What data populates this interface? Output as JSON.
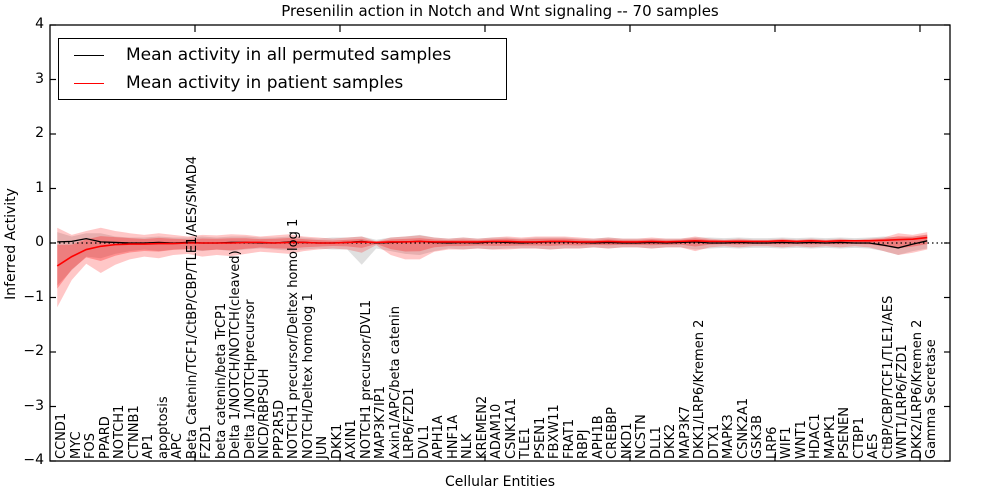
{
  "chart_data": {
    "type": "line",
    "title": "Presenilin action in Notch and Wnt signaling -- 70 samples",
    "xlabel": "Cellular Entities",
    "ylabel": "Inferred Activity",
    "ylim": [
      -4,
      4
    ],
    "yticks": [
      4,
      3,
      2,
      1,
      0,
      -1,
      -2,
      -3,
      -4
    ],
    "ytick_labels": [
      "4",
      "3",
      "2",
      "1",
      "0",
      "−1",
      "−2",
      "−3",
      "−4"
    ],
    "xlim": [
      0,
      62.07
    ],
    "xticks": [
      10,
      20,
      30,
      40,
      50,
      60
    ],
    "grid": false,
    "zero_line": true,
    "legend_position": "upper left",
    "entities": [
      "CCND1",
      "MYC",
      "FOS",
      "PPARD",
      "NOTCH1",
      "CTNNB1",
      "AP1",
      "apoptosis",
      "APC",
      "Beta Catenin/TCF1/CtBP/CBP/TLE1/AES/SMAD4",
      "FZD1",
      "beta catenin/beta TrCP1",
      "Delta 1/NOTCH/NOTCH(cleaved)",
      "Delta 1/NOTCHprecursor",
      "NICD/RBPSUH",
      "PPP2R5D",
      "NOTCH1 precursor/Deltex homolog 1",
      "NOTCH/Deltex homolog 1",
      "JUN",
      "DKK1",
      "AXIN1",
      "NOTCH1 precursor/DVL1",
      "MAP3K7IP1",
      "Axin1/APC/beta catenin",
      "LRP6/FZD1",
      "DVL1",
      "APH1A",
      "HNF1A",
      "NLK",
      "KREMEN2",
      "ADAM10",
      "CSNK1A1",
      "TLE1",
      "PSEN1",
      "FBXW11",
      "FRAT1",
      "RBPJ",
      "APH1B",
      "CREBBP",
      "NKD1",
      "NCSTN",
      "DLL1",
      "DKK2",
      "MAP3K7",
      "DKK1/LRP6/Kremen 2",
      "DTX1",
      "MAPK3",
      "CSNK2A1",
      "GSK3B",
      "LRP6",
      "WIF1",
      "WNT1",
      "HDAC1",
      "MAPK1",
      "PSENEN",
      "CTBP1",
      "AES",
      "CtBP/CBP/TCF1/TLE1/AES",
      "WNT1/LRP6/FZD1",
      "DKK2/LRP6/Kremen 2",
      "Gamma Secretase"
    ],
    "series": [
      {
        "name": "Mean activity in all permuted samples",
        "color": "#000000",
        "band_color": "#bbbbbb",
        "band_opacity": 0.45,
        "mean": [
          0.02,
          0.03,
          0.08,
          0.02,
          0.01,
          0.0,
          0.0,
          0.01,
          0.0,
          0.01,
          0.0,
          0.0,
          0.01,
          0.01,
          0.0,
          0.0,
          0.02,
          0.01,
          0.0,
          0.0,
          0.01,
          0.03,
          0.0,
          0.01,
          0.02,
          0.03,
          0.01,
          0.0,
          0.01,
          0.0,
          0.02,
          0.01,
          0.0,
          0.01,
          0.02,
          0.02,
          0.01,
          0.0,
          0.01,
          0.0,
          0.0,
          0.01,
          0.0,
          0.01,
          0.02,
          0.0,
          0.0,
          0.01,
          0.0,
          0.0,
          0.01,
          0.0,
          0.01,
          0.0,
          0.01,
          0.0,
          0.0,
          -0.04,
          -0.09,
          -0.02,
          0.04
        ],
        "band_upper": [
          0.2,
          0.12,
          0.18,
          0.18,
          0.12,
          0.1,
          0.1,
          0.12,
          0.1,
          0.1,
          0.12,
          0.1,
          0.12,
          0.12,
          0.1,
          0.1,
          0.12,
          0.1,
          0.08,
          0.1,
          0.1,
          0.12,
          0.06,
          0.1,
          0.12,
          0.15,
          0.1,
          0.08,
          0.1,
          0.08,
          0.1,
          0.1,
          0.08,
          0.1,
          0.1,
          0.1,
          0.08,
          0.08,
          0.1,
          0.08,
          0.08,
          0.08,
          0.08,
          0.08,
          0.1,
          0.1,
          0.09,
          0.1,
          0.09,
          0.09,
          0.1,
          0.09,
          0.1,
          0.09,
          0.1,
          0.09,
          0.1,
          0.12,
          0.1,
          0.12,
          0.15
        ],
        "band_lower": [
          -0.78,
          -0.5,
          -0.25,
          -0.28,
          -0.2,
          -0.15,
          -0.12,
          -0.15,
          -0.12,
          -0.12,
          -0.15,
          -0.12,
          -0.15,
          -0.12,
          -0.1,
          -0.12,
          -0.14,
          -0.12,
          -0.1,
          -0.12,
          -0.12,
          -0.4,
          -0.1,
          -0.15,
          -0.2,
          -0.22,
          -0.15,
          -0.1,
          -0.12,
          -0.1,
          -0.12,
          -0.1,
          -0.1,
          -0.1,
          -0.12,
          -0.1,
          -0.1,
          -0.08,
          -0.1,
          -0.08,
          -0.08,
          -0.1,
          -0.08,
          -0.08,
          -0.12,
          -0.1,
          -0.09,
          -0.1,
          -0.09,
          -0.09,
          -0.1,
          -0.09,
          -0.1,
          -0.09,
          -0.1,
          -0.09,
          -0.1,
          -0.15,
          -0.22,
          -0.15,
          -0.1
        ]
      },
      {
        "name": "Mean activity in patient samples",
        "color": "#ff0000",
        "band_color": "#ff0000",
        "band_opacity": 0.22,
        "band_inner_scale": 0.55,
        "mean": [
          -0.42,
          -0.25,
          -0.12,
          -0.06,
          -0.03,
          -0.02,
          -0.02,
          -0.01,
          -0.01,
          0.0,
          0.0,
          0.0,
          0.0,
          0.01,
          0.01,
          0.0,
          0.01,
          0.01,
          0.0,
          0.0,
          0.01,
          0.02,
          0.01,
          0.02,
          0.02,
          0.03,
          0.02,
          0.02,
          0.02,
          0.02,
          0.03,
          0.03,
          0.02,
          0.02,
          0.03,
          0.03,
          0.02,
          0.02,
          0.03,
          0.02,
          0.02,
          0.03,
          0.02,
          0.03,
          0.04,
          0.03,
          0.03,
          0.03,
          0.03,
          0.03,
          0.04,
          0.03,
          0.04,
          0.03,
          0.04,
          0.04,
          0.04,
          0.05,
          0.06,
          0.07,
          0.1
        ],
        "band_upper": [
          0.28,
          0.15,
          0.22,
          0.28,
          0.22,
          0.18,
          0.15,
          0.18,
          0.15,
          0.12,
          0.15,
          0.14,
          0.16,
          0.15,
          0.12,
          0.14,
          0.16,
          0.12,
          0.1,
          0.08,
          0.1,
          0.12,
          0.03,
          0.1,
          0.12,
          0.14,
          0.1,
          0.08,
          0.1,
          0.08,
          0.1,
          0.12,
          0.1,
          0.12,
          0.12,
          0.12,
          0.1,
          0.08,
          0.1,
          0.08,
          0.08,
          0.1,
          0.08,
          0.08,
          0.12,
          0.08,
          0.06,
          0.08,
          0.06,
          0.06,
          0.08,
          0.06,
          0.08,
          0.06,
          0.08,
          0.06,
          0.08,
          0.1,
          0.18,
          0.15,
          0.2
        ],
        "band_lower": [
          -1.18,
          -0.68,
          -0.38,
          -0.55,
          -0.4,
          -0.3,
          -0.25,
          -0.28,
          -0.22,
          -0.2,
          -0.25,
          -0.22,
          -0.24,
          -0.2,
          -0.16,
          -0.18,
          -0.2,
          -0.15,
          -0.12,
          -0.1,
          -0.12,
          -0.18,
          -0.04,
          -0.22,
          -0.3,
          -0.3,
          -0.16,
          -0.12,
          -0.12,
          -0.1,
          -0.12,
          -0.12,
          -0.1,
          -0.1,
          -0.12,
          -0.1,
          -0.1,
          -0.08,
          -0.1,
          -0.08,
          -0.08,
          -0.1,
          -0.08,
          -0.08,
          -0.15,
          -0.08,
          -0.06,
          -0.08,
          -0.06,
          -0.06,
          -0.08,
          -0.06,
          -0.08,
          -0.06,
          -0.08,
          -0.06,
          -0.08,
          -0.15,
          -0.22,
          -0.18,
          -0.12
        ]
      }
    ]
  },
  "legend": {
    "items": [
      {
        "label": "Mean activity in all permuted samples",
        "color": "#000000"
      },
      {
        "label": "Mean activity in patient samples",
        "color": "#ff0000"
      }
    ]
  }
}
